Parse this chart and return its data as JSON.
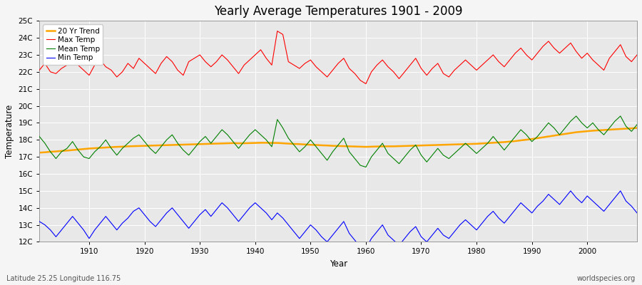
{
  "title": "Yearly Average Temperatures 1901 - 2009",
  "xlabel": "Year",
  "ylabel": "Temperature",
  "footnote_left": "Latitude 25.25 Longitude 116.75",
  "footnote_right": "worldspecies.org",
  "start_year": 1901,
  "end_year": 2009,
  "ylim": [
    12,
    25
  ],
  "yticks": [
    12,
    13,
    14,
    15,
    16,
    17,
    18,
    19,
    20,
    21,
    22,
    23,
    24,
    25
  ],
  "ytick_labels": [
    "12C",
    "13C",
    "14C",
    "15C",
    "16C",
    "17C",
    "18C",
    "19C",
    "20C",
    "21C",
    "22C",
    "23C",
    "24C",
    "25C"
  ],
  "xticks": [
    1910,
    1920,
    1930,
    1940,
    1950,
    1960,
    1970,
    1980,
    1990,
    2000
  ],
  "colors": {
    "max_temp": "#ff0000",
    "mean_temp": "#008000",
    "min_temp": "#0000ff",
    "trend": "#ffa500",
    "background": "#f5f5f5",
    "plot_bg": "#e8e8e8",
    "grid": "#ffffff"
  },
  "legend": {
    "max_temp": "Max Temp",
    "mean_temp": "Mean Temp",
    "min_temp": "Min Temp",
    "trend": "20 Yr Trend"
  },
  "max_temp": [
    22.1,
    22.5,
    22.0,
    21.9,
    22.2,
    22.4,
    22.6,
    22.4,
    22.1,
    21.8,
    22.4,
    22.7,
    22.3,
    22.1,
    21.7,
    22.0,
    22.5,
    22.2,
    22.8,
    22.5,
    22.2,
    21.9,
    22.5,
    22.9,
    22.6,
    22.1,
    21.8,
    22.6,
    22.8,
    23.0,
    22.6,
    22.3,
    22.6,
    23.0,
    22.7,
    22.3,
    21.9,
    22.4,
    22.7,
    23.0,
    23.3,
    22.8,
    22.4,
    24.4,
    24.2,
    22.6,
    22.4,
    22.2,
    22.5,
    22.7,
    22.3,
    22.0,
    21.7,
    22.1,
    22.5,
    22.8,
    22.2,
    21.9,
    21.5,
    21.3,
    22.0,
    22.4,
    22.7,
    22.3,
    22.0,
    21.6,
    22.0,
    22.4,
    22.8,
    22.2,
    21.8,
    22.2,
    22.5,
    21.9,
    21.7,
    22.1,
    22.4,
    22.7,
    22.4,
    22.1,
    22.4,
    22.7,
    23.0,
    22.6,
    22.3,
    22.7,
    23.1,
    23.4,
    23.0,
    22.7,
    23.1,
    23.5,
    23.8,
    23.4,
    23.1,
    23.4,
    23.7,
    23.2,
    22.8,
    23.1,
    22.7,
    22.4,
    22.1,
    22.8,
    23.2,
    23.6,
    22.9,
    22.6,
    23.0
  ],
  "mean_temp": [
    18.2,
    17.8,
    17.3,
    16.9,
    17.3,
    17.5,
    17.9,
    17.4,
    17.0,
    16.9,
    17.3,
    17.6,
    18.0,
    17.5,
    17.1,
    17.5,
    17.8,
    18.1,
    18.3,
    17.9,
    17.5,
    17.2,
    17.6,
    18.0,
    18.3,
    17.8,
    17.4,
    17.1,
    17.5,
    17.9,
    18.2,
    17.8,
    18.2,
    18.6,
    18.3,
    17.9,
    17.5,
    17.9,
    18.3,
    18.6,
    18.3,
    18.0,
    17.6,
    19.2,
    18.7,
    18.1,
    17.7,
    17.3,
    17.6,
    18.0,
    17.6,
    17.2,
    16.8,
    17.3,
    17.7,
    18.1,
    17.3,
    16.9,
    16.5,
    16.4,
    17.0,
    17.4,
    17.8,
    17.2,
    16.9,
    16.6,
    17.0,
    17.4,
    17.7,
    17.1,
    16.7,
    17.1,
    17.5,
    17.1,
    16.9,
    17.2,
    17.5,
    17.8,
    17.5,
    17.2,
    17.5,
    17.8,
    18.2,
    17.8,
    17.4,
    17.8,
    18.2,
    18.6,
    18.3,
    17.9,
    18.2,
    18.6,
    19.0,
    18.7,
    18.3,
    18.7,
    19.1,
    19.4,
    19.0,
    18.7,
    19.0,
    18.6,
    18.3,
    18.7,
    19.1,
    19.4,
    18.8,
    18.5,
    18.9
  ],
  "min_temp": [
    13.2,
    13.0,
    12.7,
    12.3,
    12.7,
    13.1,
    13.5,
    13.1,
    12.7,
    12.2,
    12.7,
    13.1,
    13.5,
    13.1,
    12.7,
    13.1,
    13.4,
    13.8,
    14.0,
    13.6,
    13.2,
    12.9,
    13.3,
    13.7,
    14.0,
    13.6,
    13.2,
    12.8,
    13.2,
    13.6,
    13.9,
    13.5,
    13.9,
    14.3,
    14.0,
    13.6,
    13.2,
    13.6,
    14.0,
    14.3,
    14.0,
    13.7,
    13.3,
    13.7,
    13.4,
    13.0,
    12.6,
    12.2,
    12.6,
    13.0,
    12.7,
    12.3,
    12.0,
    12.4,
    12.8,
    13.2,
    12.5,
    12.1,
    11.7,
    11.6,
    12.2,
    12.6,
    13.0,
    12.4,
    12.1,
    11.8,
    12.2,
    12.6,
    12.9,
    12.3,
    12.0,
    12.4,
    12.8,
    12.4,
    12.2,
    12.6,
    13.0,
    13.3,
    13.0,
    12.7,
    13.1,
    13.5,
    13.8,
    13.4,
    13.1,
    13.5,
    13.9,
    14.3,
    14.0,
    13.7,
    14.1,
    14.4,
    14.8,
    14.5,
    14.2,
    14.6,
    15.0,
    14.6,
    14.3,
    14.7,
    14.4,
    14.1,
    13.8,
    14.2,
    14.6,
    15.0,
    14.4,
    14.1,
    13.7
  ],
  "trend": [
    17.25,
    17.27,
    17.3,
    17.32,
    17.35,
    17.37,
    17.4,
    17.43,
    17.46,
    17.49,
    17.51,
    17.53,
    17.55,
    17.57,
    17.59,
    17.6,
    17.62,
    17.63,
    17.64,
    17.65,
    17.66,
    17.67,
    17.68,
    17.69,
    17.7,
    17.71,
    17.72,
    17.73,
    17.74,
    17.75,
    17.76,
    17.77,
    17.78,
    17.79,
    17.8,
    17.81,
    17.8,
    17.8,
    17.81,
    17.82,
    17.83,
    17.83,
    17.82,
    17.82,
    17.8,
    17.78,
    17.76,
    17.75,
    17.73,
    17.71,
    17.7,
    17.68,
    17.67,
    17.65,
    17.64,
    17.63,
    17.62,
    17.61,
    17.6,
    17.59,
    17.6,
    17.61,
    17.62,
    17.62,
    17.62,
    17.63,
    17.64,
    17.65,
    17.66,
    17.67,
    17.68,
    17.69,
    17.7,
    17.71,
    17.72,
    17.73,
    17.74,
    17.75,
    17.76,
    17.77,
    17.79,
    17.81,
    17.83,
    17.85,
    17.87,
    17.9,
    17.93,
    17.97,
    18.01,
    18.05,
    18.1,
    18.15,
    18.2,
    18.25,
    18.3,
    18.35,
    18.4,
    18.45,
    18.48,
    18.51,
    18.54,
    18.56,
    18.58,
    18.6,
    18.62,
    18.64,
    18.66,
    18.68,
    18.7
  ]
}
